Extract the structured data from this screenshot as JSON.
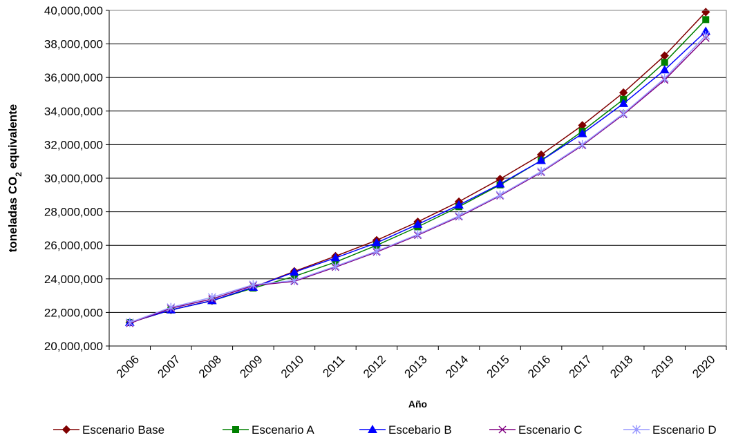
{
  "chart_data": {
    "type": "line",
    "title": "",
    "xlabel": "Año",
    "ylabel": {
      "prefix": "toneladas CO",
      "subscript": "2",
      "suffix": " equivalente"
    },
    "ylim": [
      20000000,
      40000000
    ],
    "ytick_step": 2000000,
    "x": [
      "2006",
      "2007",
      "2008",
      "2009",
      "2010",
      "2011",
      "2012",
      "2013",
      "2014",
      "2015",
      "2016",
      "2017",
      "2018",
      "2019",
      "2020"
    ],
    "grid": "horizontal",
    "legend_position": "bottom",
    "series": [
      {
        "name": "Escenario Base",
        "color": "#800000",
        "marker": "diamond",
        "values": [
          21400000,
          22150000,
          22700000,
          23500000,
          24450000,
          25350000,
          26300000,
          27400000,
          28600000,
          29950000,
          31400000,
          33150000,
          35100000,
          37300000,
          39900000
        ]
      },
      {
        "name": "Escenario A",
        "color": "#008000",
        "marker": "square",
        "values": [
          21400000,
          22150000,
          22700000,
          23450000,
          24150000,
          25000000,
          26000000,
          27100000,
          28300000,
          29600000,
          31050000,
          32800000,
          34700000,
          36900000,
          39450000
        ]
      },
      {
        "name": "Escebario B",
        "color": "#0000ff",
        "marker": "triangle",
        "values": [
          21400000,
          22150000,
          22700000,
          23500000,
          24400000,
          25250000,
          26150000,
          27250000,
          28400000,
          29650000,
          31050000,
          32650000,
          34450000,
          36450000,
          38750000
        ]
      },
      {
        "name": "Escenario C",
        "color": "#800080",
        "marker": "x",
        "values": [
          21350000,
          22250000,
          22800000,
          23600000,
          23850000,
          24700000,
          25600000,
          26600000,
          27700000,
          28950000,
          30350000,
          31950000,
          33800000,
          35850000,
          38350000
        ]
      },
      {
        "name": "Escenario D",
        "color": "#9999ff",
        "marker": "star",
        "values": [
          21400000,
          22300000,
          22900000,
          23650000,
          23900000,
          24750000,
          25650000,
          26650000,
          27750000,
          29000000,
          30400000,
          32000000,
          33850000,
          35950000,
          38500000
        ]
      }
    ]
  }
}
